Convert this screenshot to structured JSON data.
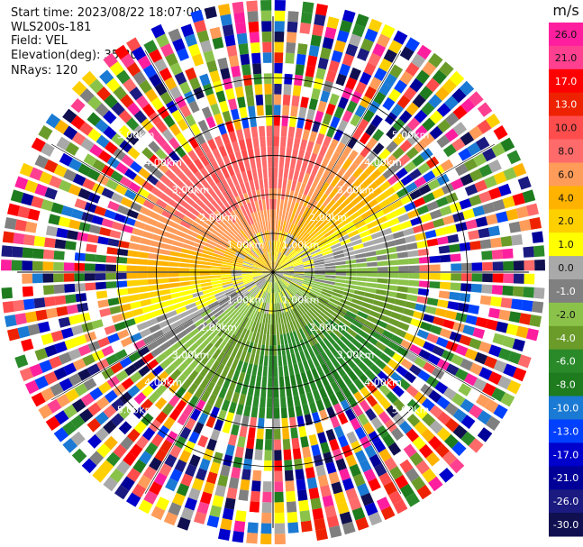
{
  "header": {
    "start_time": "Start time: 2023/08/22 18:07:09",
    "instrument": "WLS200s-181",
    "field": "Field: VEL",
    "elevation": "Elevation(deg): 35.30",
    "nrays": "NRays: 120"
  },
  "chart_data": {
    "type": "ppi",
    "field": "VEL",
    "nrays": 120,
    "range_rings_km": [
      1.0,
      2.0,
      3.0,
      4.0,
      5.0
    ],
    "ring_labels": [
      "1.00km",
      "2.00km",
      "3.00km",
      "4.00km",
      "5.00km"
    ],
    "max_range_km": 7.0,
    "clean_range_km": 4.0,
    "radial_velocity_pattern": {
      "positive_sector_azimuth_deg": 340,
      "negative_sector_azimuth_deg": 160,
      "peak_speed_ms": 8
    },
    "colorbar": {
      "unit": "m/s",
      "ticks": [
        "26.0",
        "21.0",
        "17.0",
        "13.0",
        "10.0",
        "8.0",
        "6.0",
        "4.0",
        "2.0",
        "1.0",
        "0.0",
        "-1.0",
        "-2.0",
        "-4.0",
        "-6.0",
        "-8.0",
        "-10.0",
        "-13.0",
        "-17.0",
        "-21.0",
        "-26.0",
        "-30.0"
      ],
      "colors": [
        "#ff1f9e",
        "#ff4090",
        "#ff0000",
        "#ee2200",
        "#ff4d4d",
        "#ff6a6a",
        "#ff9c5a",
        "#ffb300",
        "#ffd000",
        "#ffff00",
        "#a9a9a9",
        "#808080",
        "#8bc34a",
        "#6b9c2a",
        "#2a8a2a",
        "#1e7b1e",
        "#1a7ad4",
        "#0040ff",
        "#0000cc",
        "#000099",
        "#1a1a80",
        "#101050"
      ]
    }
  }
}
